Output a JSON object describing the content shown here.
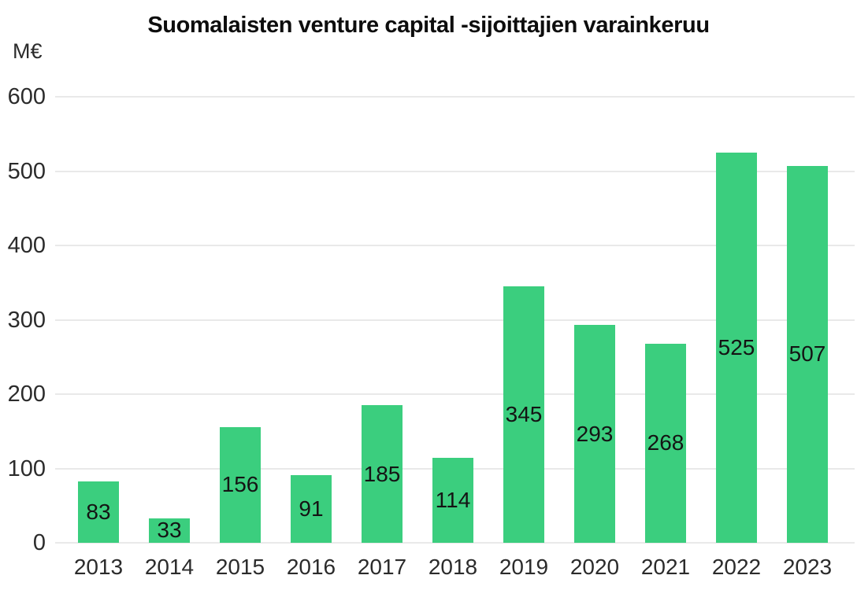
{
  "chart_data": {
    "type": "bar",
    "title": "Suomalaisten venture capital -sijoittajien varainkeruu",
    "unit_label": "M€",
    "categories": [
      "2013",
      "2014",
      "2015",
      "2016",
      "2017",
      "2018",
      "2019",
      "2020",
      "2021",
      "2022",
      "2023"
    ],
    "values": [
      83,
      33,
      156,
      91,
      185,
      114,
      345,
      293,
      268,
      525,
      507
    ],
    "xlabel": "",
    "ylabel": "M€",
    "ylim": [
      0,
      600
    ],
    "y_ticks": [
      0,
      100,
      200,
      300,
      400,
      500,
      600
    ],
    "grid": true,
    "legend_position": "none",
    "data_labels": "inside-center",
    "colors": {
      "bar": "#3bce7e",
      "title_text": "#0d0d0d",
      "axis_text": "#2b2b2b",
      "value_text": "#141414",
      "gridline": "#e9e9e9",
      "background": "#ffffff"
    }
  }
}
